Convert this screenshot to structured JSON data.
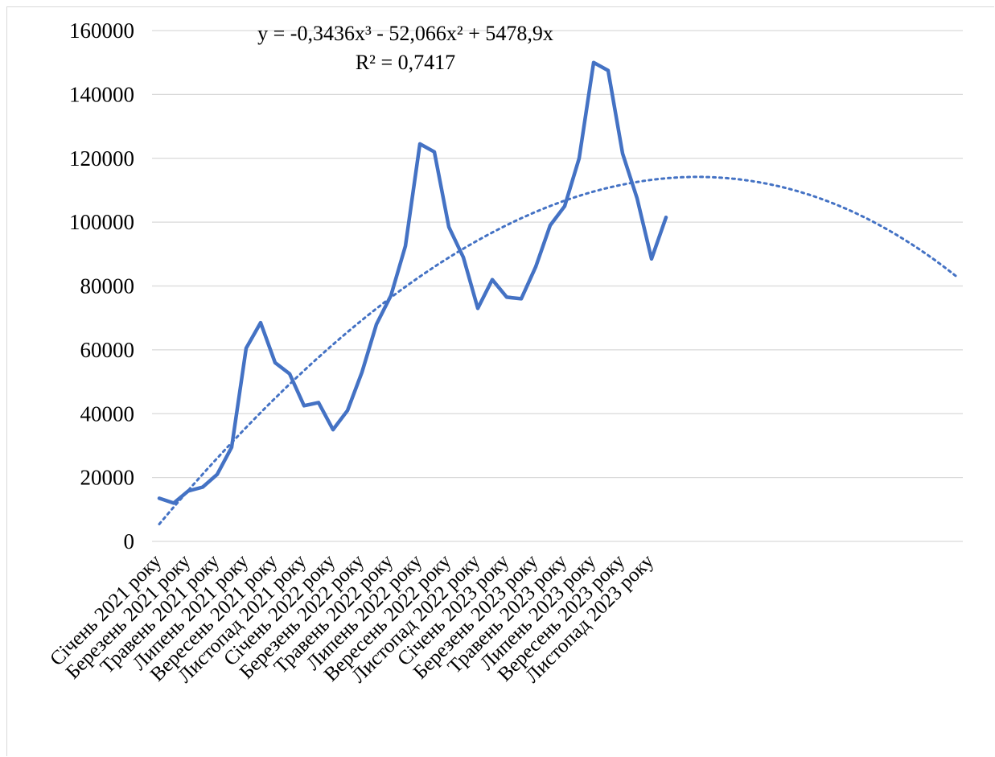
{
  "chart_data": {
    "type": "line",
    "title": "",
    "xlabel": "",
    "ylabel": "",
    "ylim": [
      0,
      160000
    ],
    "y_ticks": [
      "0",
      "20000",
      "40000",
      "60000",
      "80000",
      "100000",
      "120000",
      "140000",
      "160000"
    ],
    "grid": true,
    "legend": "none",
    "category_labels": [
      "Січень 2021 року",
      "Березень 2021 року",
      "Травень 2021 року",
      "Липень 2021 року",
      "Вересень 2021 року",
      "Листопад 2021 року",
      "Січень 2022 року",
      "Березень 2022 року",
      "Травень 2022 року",
      "Липень 2022 року",
      "Вересень 2022 року",
      "Листопад 2022 року",
      "Січень 2023 року",
      "Березень 2023 року",
      "Травень 2023 року",
      "Липень 2023 року",
      "Вересень 2023 року",
      "Листопад 2023 року"
    ],
    "series": [
      {
        "values": [
          13500,
          12000,
          15800,
          17000,
          21000,
          29500,
          60500,
          68500,
          56000,
          52500,
          42500,
          43500,
          35000,
          41000,
          53000,
          68000,
          77000,
          92500,
          124500,
          122000,
          98500,
          89000,
          73000,
          82000,
          76500,
          76000,
          86000,
          99000,
          105000,
          120000,
          150000,
          147500,
          121500,
          107500,
          88500,
          101500
        ],
        "color": "#4472c4"
      }
    ],
    "trendline": {
      "type": "polynomial",
      "order": 3,
      "coefficients": [
        -0.3436,
        -52.066,
        5478.9,
        0
      ],
      "forecast_forward": 20,
      "color": "#4472c4",
      "style": "dotted"
    },
    "annotations": {
      "equation": "y = -0,3436x³ - 52,066x² + 5478,9x",
      "r_squared": "R² = 0,7417"
    }
  }
}
